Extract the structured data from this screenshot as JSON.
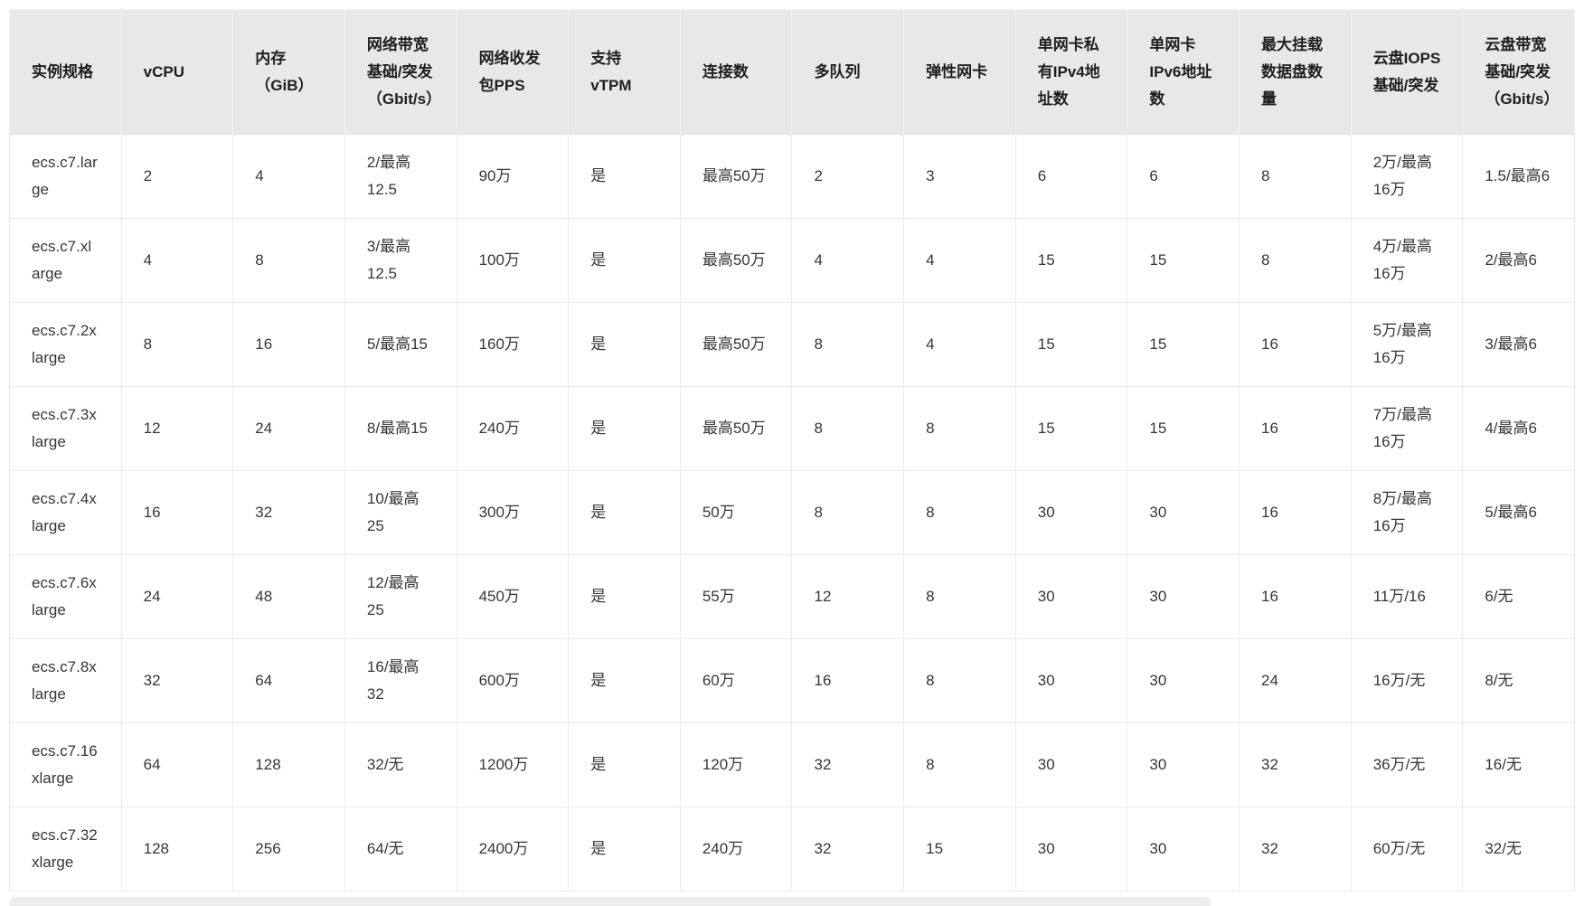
{
  "colors": {
    "header_background": "#e8e8e8",
    "body_background": "#ffffff",
    "border": "#ebebeb",
    "header_text": "#1f1f1f",
    "body_text": "#363636"
  },
  "table": {
    "columns": [
      "实例规格",
      "vCPU",
      "内存（GiB）",
      "网络带宽基础/突发（Gbit/s）",
      "网络收发包PPS",
      "支持vTPM",
      "连接数",
      "多队列",
      "弹性网卡",
      "单网卡私有IPv4地址数",
      "单网卡IPv6地址数",
      "最大挂载数据盘数量",
      "云盘IOPS基础/突发",
      "云盘带宽基础/突发（Gbit/s）"
    ],
    "rows": [
      [
        "ecs.c7.large",
        "2",
        "4",
        "2/最高12.5",
        "90万",
        "是",
        "最高50万",
        "2",
        "3",
        "6",
        "6",
        "8",
        "2万/最高16万",
        "1.5/最高6"
      ],
      [
        "ecs.c7.xlarge",
        "4",
        "8",
        "3/最高12.5",
        "100万",
        "是",
        "最高50万",
        "4",
        "4",
        "15",
        "15",
        "8",
        "4万/最高16万",
        "2/最高6"
      ],
      [
        "ecs.c7.2xlarge",
        "8",
        "16",
        "5/最高15",
        "160万",
        "是",
        "最高50万",
        "8",
        "4",
        "15",
        "15",
        "16",
        "5万/最高16万",
        "3/最高6"
      ],
      [
        "ecs.c7.3xlarge",
        "12",
        "24",
        "8/最高15",
        "240万",
        "是",
        "最高50万",
        "8",
        "8",
        "15",
        "15",
        "16",
        "7万/最高16万",
        "4/最高6"
      ],
      [
        "ecs.c7.4xlarge",
        "16",
        "32",
        "10/最高25",
        "300万",
        "是",
        "50万",
        "8",
        "8",
        "30",
        "30",
        "16",
        "8万/最高16万",
        "5/最高6"
      ],
      [
        "ecs.c7.6xlarge",
        "24",
        "48",
        "12/最高25",
        "450万",
        "是",
        "55万",
        "12",
        "8",
        "30",
        "30",
        "16",
        "11万/16",
        "6/无"
      ],
      [
        "ecs.c7.8xlarge",
        "32",
        "64",
        "16/最高32",
        "600万",
        "是",
        "60万",
        "16",
        "8",
        "30",
        "30",
        "24",
        "16万/无",
        "8/无"
      ],
      [
        "ecs.c7.16xlarge",
        "64",
        "128",
        "32/无",
        "1200万",
        "是",
        "120万",
        "32",
        "8",
        "30",
        "30",
        "32",
        "36万/无",
        "16/无"
      ],
      [
        "ecs.c7.32xlarge",
        "128",
        "256",
        "64/无",
        "2400万",
        "是",
        "240万",
        "32",
        "15",
        "30",
        "30",
        "32",
        "60万/无",
        "32/无"
      ]
    ]
  }
}
